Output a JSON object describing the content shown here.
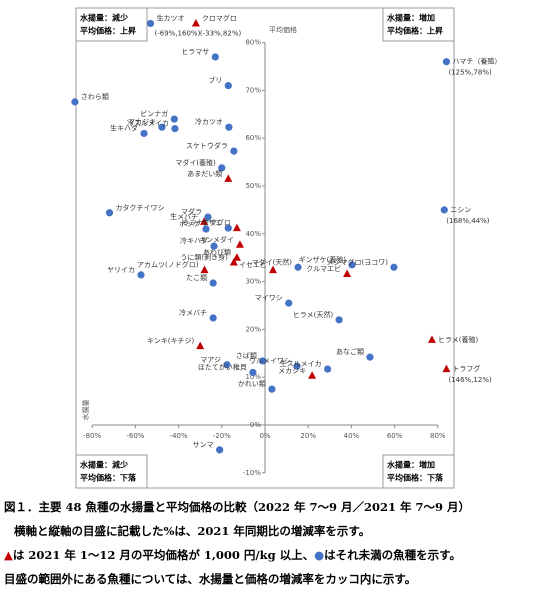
{
  "chart_data": {
    "type": "scatter",
    "x_label": "水揚量",
    "y_label": "平均価格",
    "xlim": [
      -90,
      85
    ],
    "ylim": [
      -12,
      85
    ],
    "xticks": [
      {
        "value": -80,
        "label": "-80%"
      },
      {
        "value": -60,
        "label": "-60%"
      },
      {
        "value": -40,
        "label": "-40%"
      },
      {
        "value": -20,
        "label": "-20%"
      },
      {
        "value": 0,
        "label": "0%"
      },
      {
        "value": 20,
        "label": "20%"
      },
      {
        "value": 40,
        "label": "40%"
      },
      {
        "value": 60,
        "label": "60%"
      },
      {
        "value": 80,
        "label": "80%"
      }
    ],
    "yticks": [
      {
        "value": -10,
        "label": "-10%"
      },
      {
        "value": 0,
        "label": "0%"
      },
      {
        "value": 10,
        "label": "10%"
      },
      {
        "value": 20,
        "label": "20%"
      },
      {
        "value": 30,
        "label": "30%"
      },
      {
        "value": 40,
        "label": "40%"
      },
      {
        "value": 50,
        "label": "50%"
      },
      {
        "value": 60,
        "label": "60%"
      },
      {
        "value": 70,
        "label": "70%"
      },
      {
        "value": 80,
        "label": "80%"
      }
    ],
    "colors": {
      "circle": "#4472c4",
      "triangle": "#c00000"
    },
    "quadrants": [
      [
        "水揚量：減少",
        "平均価格：上昇"
      ],
      [
        "水揚量：増加",
        "平均価格：上昇"
      ],
      [
        "水揚量：減少",
        "平均価格：下落"
      ],
      [
        "水揚量：増加",
        "平均価格：下落"
      ]
    ],
    "points": [
      {
        "label": "生カツオ",
        "note": "(-69%,160%)",
        "x": -53,
        "y": 84,
        "marker": "circle"
      },
      {
        "label": "クロマグロ",
        "note": "(-33%,82%)",
        "x": -32,
        "y": 84,
        "marker": "triangle"
      },
      {
        "label": "ハマチ（養殖）",
        "note": "(125%,78%)",
        "x": 84,
        "y": 76,
        "marker": "circle"
      },
      {
        "label": "ヒラマサ",
        "x": -23,
        "y": 77,
        "marker": "circle"
      },
      {
        "label": "ブリ",
        "x": -17,
        "y": 71,
        "marker": "circle"
      },
      {
        "label": "さわら類",
        "x": -88,
        "y": 67.6,
        "marker": "circle"
      },
      {
        "label": "ビンナガ",
        "x": -42,
        "y": 64,
        "marker": "circle"
      },
      {
        "label": "マカジキ",
        "x": -47.7,
        "y": 62.3,
        "marker": "circle"
      },
      {
        "label": "生キハダ",
        "x": -56,
        "y": 61,
        "marker": "circle"
      },
      {
        "label": "冷スルメイカ",
        "x": -41.7,
        "y": 62,
        "marker": "circle"
      },
      {
        "label": "冷カツオ",
        "x": -16.7,
        "y": 62.3,
        "marker": "circle"
      },
      {
        "label": "スケトウダラ",
        "x": -14.4,
        "y": 57.3,
        "marker": "circle"
      },
      {
        "label": "マダイ(養殖)",
        "x": -20,
        "y": 53.8,
        "marker": "circle"
      },
      {
        "label": "あまだい類",
        "x": -17,
        "y": 51.5,
        "marker": "triangle"
      },
      {
        "label": "カタクチイワシ",
        "x": -72,
        "y": 44.4,
        "marker": "circle"
      },
      {
        "label": "ニシン",
        "note": "(168%,44%)",
        "x": 83,
        "y": 45,
        "marker": "circle"
      },
      {
        "label": "マダラ",
        "x": -26.4,
        "y": 43.5,
        "marker": "circle"
      },
      {
        "label": "生メバチ",
        "x": -28.2,
        "y": 42.5,
        "marker": "triangle"
      },
      {
        "label": "ホッケ",
        "x": -27.3,
        "y": 41,
        "marker": "circle"
      },
      {
        "label": "サザエ",
        "x": -17,
        "y": 41.2,
        "marker": "circle"
      },
      {
        "label": "冷ミナミマグロ",
        "x": -13,
        "y": 41.2,
        "marker": "triangle"
      },
      {
        "label": "冷キハダ",
        "x": -23.6,
        "y": 37.4,
        "marker": "circle"
      },
      {
        "label": "キンメダイ",
        "x": -11.6,
        "y": 37.7,
        "marker": "triangle"
      },
      {
        "label": "あわび類",
        "x": -13,
        "y": 35,
        "marker": "triangle"
      },
      {
        "label": "うに類(剥き身)",
        "x": -14.4,
        "y": 34,
        "marker": "triangle"
      },
      {
        "label": "ヤリイカ",
        "x": -57.4,
        "y": 31.4,
        "marker": "circle"
      },
      {
        "label": "アカムツ(ノドグロ)",
        "x": -28,
        "y": 32.4,
        "marker": "triangle"
      },
      {
        "label": "たこ類",
        "x": -24,
        "y": 29.7,
        "marker": "circle"
      },
      {
        "label": "イセエビ",
        "x": 3.7,
        "y": 32.4,
        "marker": "triangle"
      },
      {
        "label": "マダイ(天然)",
        "x": 15.3,
        "y": 33,
        "marker": "circle"
      },
      {
        "label": "ギンザケ(養殖)",
        "x": 40.3,
        "y": 33.5,
        "marker": "circle"
      },
      {
        "label": "クルマエビ",
        "x": 38,
        "y": 31.6,
        "marker": "triangle"
      },
      {
        "label": "メジマグロ(ヨコワ)",
        "x": 59.7,
        "y": 33,
        "marker": "circle"
      },
      {
        "label": "マイワシ",
        "x": 11,
        "y": 25.5,
        "marker": "circle"
      },
      {
        "label": "ヒラメ(天然)",
        "x": 34.3,
        "y": 22,
        "marker": "circle"
      },
      {
        "label": "冷メバチ",
        "x": -24,
        "y": 22.4,
        "marker": "circle"
      },
      {
        "label": "ヒラメ(養殖)",
        "x": 77.3,
        "y": 17.8,
        "marker": "triangle"
      },
      {
        "label": "キンキ(キチジ)",
        "x": -30,
        "y": 16.5,
        "marker": "triangle"
      },
      {
        "label": "あなご類",
        "x": 48.6,
        "y": 14.2,
        "marker": "circle"
      },
      {
        "label": "さば類",
        "x": -1,
        "y": 13.4,
        "marker": "circle"
      },
      {
        "label": "マアジ",
        "x": -17.6,
        "y": 12.6,
        "marker": "circle"
      },
      {
        "label": "ウルメイワシ",
        "x": 14.8,
        "y": 12.3,
        "marker": "circle"
      },
      {
        "label": "生スルメイカ",
        "x": 29,
        "y": 11.7,
        "marker": "circle"
      },
      {
        "label": "トラフグ",
        "note": "(146%,12%)",
        "x": 84,
        "y": 11.7,
        "marker": "triangle"
      },
      {
        "label": "ほたてがい稚貝",
        "x": -5.6,
        "y": 11,
        "marker": "circle"
      },
      {
        "label": "メカジキ",
        "x": 21.8,
        "y": 10.3,
        "marker": "triangle"
      },
      {
        "label": "かれい類",
        "x": 3.2,
        "y": 7.5,
        "marker": "circle"
      },
      {
        "label": "サンマ",
        "x": -21,
        "y": -5.2,
        "marker": "circle"
      }
    ],
    "caption": {
      "title": "図１．主要 48 魚種の水揚量と平均価格の比較（2022 年 7～9 月／2021 年 7～9 月）",
      "line1": "横軸と縦軸の目盛に記載した%は、2021 年同期比の増減率を示す。",
      "triangle_mark": "▲",
      "line2a": "は 2021 年 1～12 月の平均価格が 1,000 円/kg 以上、",
      "circle_mark": "●",
      "line2b": "はそれ未満の魚種を示す。",
      "line3": "目盛の範囲外にある魚種については、水揚量と価格の増減率をカッコ内に示す。"
    }
  }
}
